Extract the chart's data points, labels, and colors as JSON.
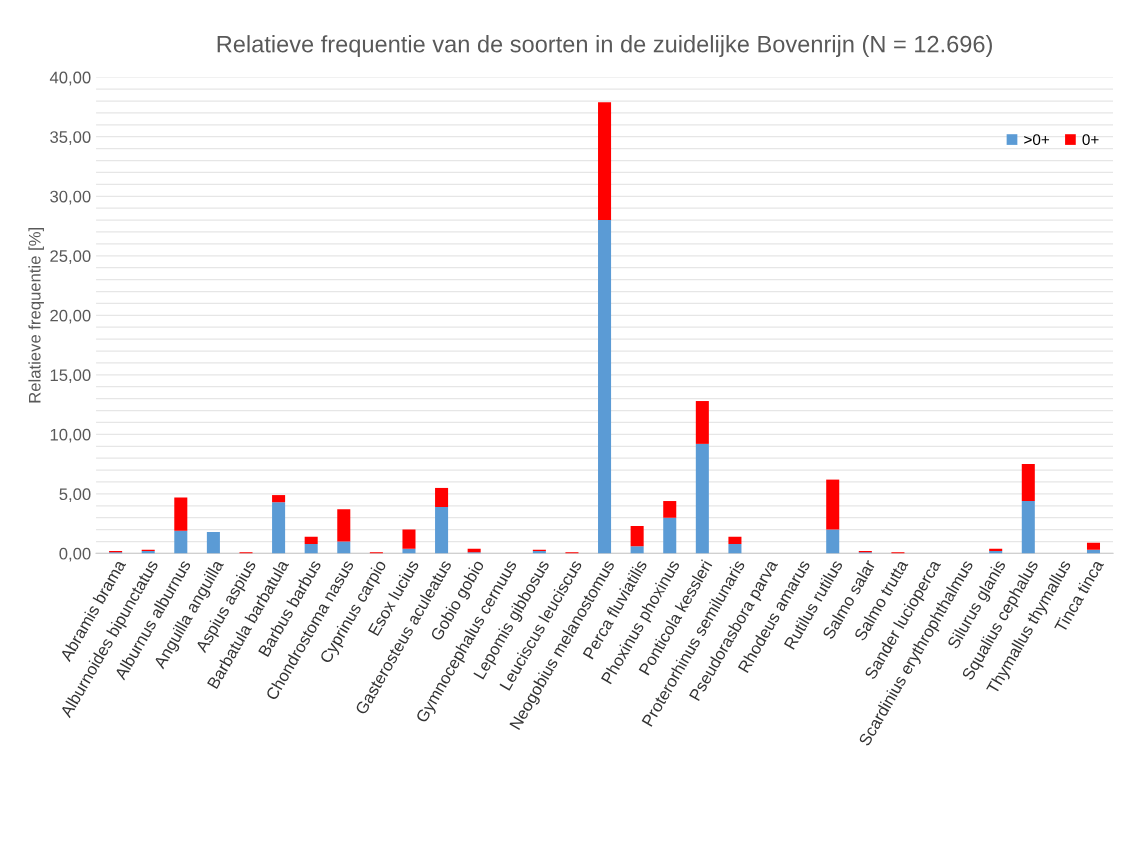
{
  "chart_data": {
    "type": "bar",
    "title": "Relatieve frequentie van de soorten in de zuidelijke Bovenrijn (N = 12.696)",
    "ylabel": "Relatieve frequentie [%]",
    "categories": [
      "Abramis brama",
      "Alburnoides bipunctatus",
      "Alburnus alburnus",
      "Anguilla anguilla",
      "Aspius aspius",
      "Barbatula barbatula",
      "Barbus barbus",
      "Chondrostoma nasus",
      "Cyprinus carpio",
      "Esox lucius",
      "Gasterosteus aculeatus",
      "Gobio gobio",
      "Gymnocephalus cernuus",
      "Lepomis gibbosus",
      "Leuciscus leuciscus",
      "Neogobius melanostomus",
      "Perca fluviatilis",
      "Phoxinus phoxinus",
      "Ponticola kessleri",
      "Proterorhinus semilunaris",
      "Pseudorasbora parva",
      "Rhodeus amarus",
      "Rutilus rutilus",
      "Salmo salar",
      "Salmo trutta",
      "Sander lucioperca",
      "Scardinius erythrophthalmus",
      "Silurus glanis",
      "Squalius cephalus",
      "Thymallus thymallus",
      "Tinca tinca"
    ],
    "series": [
      {
        "name": ">0+",
        "color": "#5b9bd5",
        "values": [
          0.1,
          0.2,
          1.9,
          1.8,
          0,
          4.3,
          0.8,
          1.0,
          0,
          0.4,
          3.9,
          0.1,
          0,
          0.2,
          0,
          28.0,
          0.6,
          3.0,
          9.2,
          0.8,
          0,
          0,
          2.0,
          0.1,
          0,
          0,
          0,
          0.2,
          4.4,
          0,
          0.3
        ]
      },
      {
        "name": "0+",
        "color": "#ff0000",
        "values": [
          0.1,
          0.1,
          2.8,
          0,
          0.1,
          0.6,
          0.6,
          2.7,
          0.1,
          1.6,
          1.6,
          0.3,
          0,
          0.1,
          0.1,
          9.9,
          1.7,
          1.4,
          3.6,
          0.6,
          0,
          0,
          4.2,
          0.1,
          0.1,
          0,
          0,
          0.2,
          3.1,
          0,
          0.6
        ]
      }
    ],
    "stacked": true,
    "ylim": [
      0,
      40
    ],
    "yticks": [
      {
        "value": 0,
        "label": "0,00"
      },
      {
        "value": 1,
        "label": null
      },
      {
        "value": 2,
        "label": null
      },
      {
        "value": 3,
        "label": null
      },
      {
        "value": 4,
        "label": null
      },
      {
        "value": 5,
        "label": "5,00"
      },
      {
        "value": 6,
        "label": null
      },
      {
        "value": 7,
        "label": null
      },
      {
        "value": 8,
        "label": null
      },
      {
        "value": 9,
        "label": null
      },
      {
        "value": 10,
        "label": "10,00"
      },
      {
        "value": 11,
        "label": null
      },
      {
        "value": 12,
        "label": null
      },
      {
        "value": 13,
        "label": null
      },
      {
        "value": 14,
        "label": null
      },
      {
        "value": 15,
        "label": "15,00"
      },
      {
        "value": 16,
        "label": null
      },
      {
        "value": 17,
        "label": null
      },
      {
        "value": 18,
        "label": null
      },
      {
        "value": 19,
        "label": null
      },
      {
        "value": 20,
        "label": "20,00"
      },
      {
        "value": 21,
        "label": null
      },
      {
        "value": 22,
        "label": null
      },
      {
        "value": 23,
        "label": null
      },
      {
        "value": 24,
        "label": null
      },
      {
        "value": 25,
        "label": "25,00"
      },
      {
        "value": 26,
        "label": null
      },
      {
        "value": 27,
        "label": null
      },
      {
        "value": 28,
        "label": null
      },
      {
        "value": 29,
        "label": null
      },
      {
        "value": 30,
        "label": "30,00"
      },
      {
        "value": 31,
        "label": null
      },
      {
        "value": 32,
        "label": null
      },
      {
        "value": 33,
        "label": null
      },
      {
        "value": 34,
        "label": null
      },
      {
        "value": 35,
        "label": "35,00"
      },
      {
        "value": 36,
        "label": null
      },
      {
        "value": 37,
        "label": null
      },
      {
        "value": 38,
        "label": null
      },
      {
        "value": 39,
        "label": null
      },
      {
        "value": 40,
        "label": "40,00"
      }
    ],
    "grid": "y",
    "legend": "top right"
  }
}
